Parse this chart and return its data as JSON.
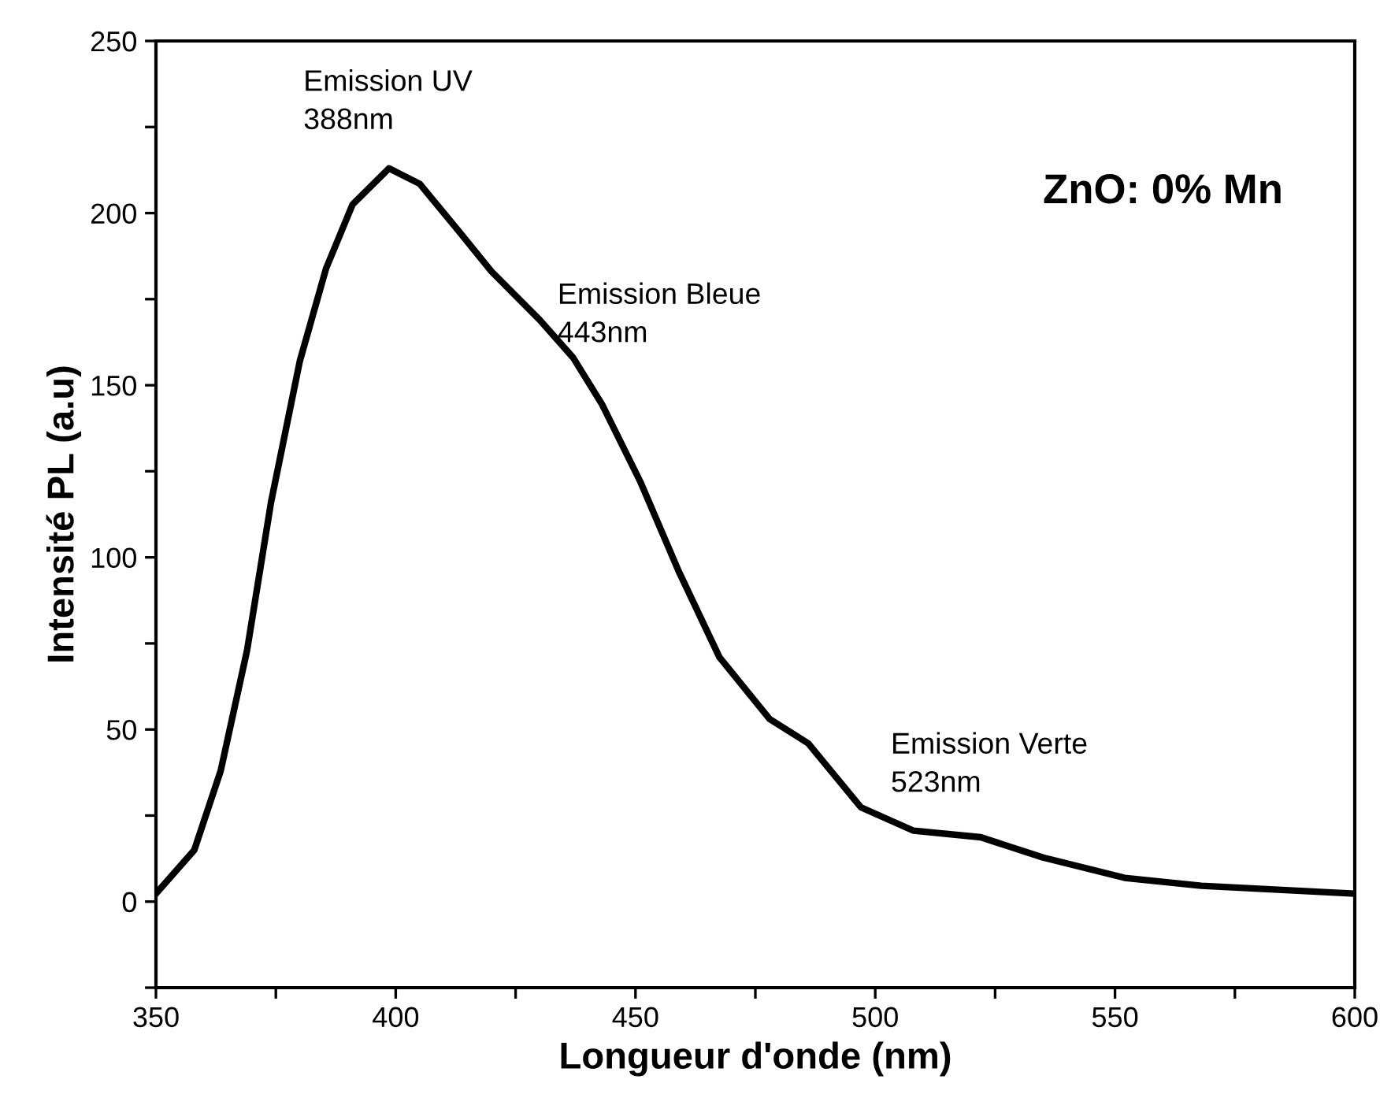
{
  "chart_data": {
    "type": "line",
    "xlabel": "Longueur d'onde (nm)",
    "ylabel": "Intensité PL (a.u)",
    "x": [
      350,
      358,
      363.5,
      369,
      374,
      380,
      385.5,
      391,
      398.6,
      405,
      413,
      420,
      430,
      437,
      443,
      451,
      459,
      467.5,
      478,
      486,
      497,
      508,
      522,
      535,
      552,
      568,
      600
    ],
    "series": [
      {
        "color": "#000000",
        "values": [
          2.3,
          15,
          38,
          73,
          116,
          157,
          184,
          202.5,
          213,
          208.5,
          195,
          183,
          169,
          158,
          144.5,
          122,
          96,
          71,
          53,
          46,
          27.4,
          20.6,
          18.7,
          12.8,
          6.9,
          4.6,
          2.3
        ]
      }
    ],
    "xlim": [
      350,
      600
    ],
    "xticks": [
      350,
      {
        "value": 375,
        "label": null
      },
      400,
      {
        "value": 425,
        "label": null
      },
      450,
      {
        "value": 475,
        "label": null
      },
      500,
      {
        "value": 525,
        "label": null
      },
      550,
      {
        "value": 575,
        "label": null
      },
      600
    ],
    "ylim": [
      -25,
      250
    ],
    "yticks": [
      {
        "value": -25,
        "label": null
      },
      0,
      {
        "value": 25,
        "label": null
      },
      50,
      {
        "value": 75,
        "label": null
      },
      100,
      {
        "value": 125,
        "label": null
      },
      150,
      {
        "value": 175,
        "label": null
      },
      200,
      {
        "value": 225,
        "label": null
      },
      250
    ],
    "annotations": [
      "Emission UV\n388nm",
      "Emission Bleue\n443nm",
      "Emission Verte\n523nm",
      "ZnO: 0% Mn"
    ],
    "grid": false,
    "legend": false,
    "marker": "none",
    "line_style": "solid"
  }
}
